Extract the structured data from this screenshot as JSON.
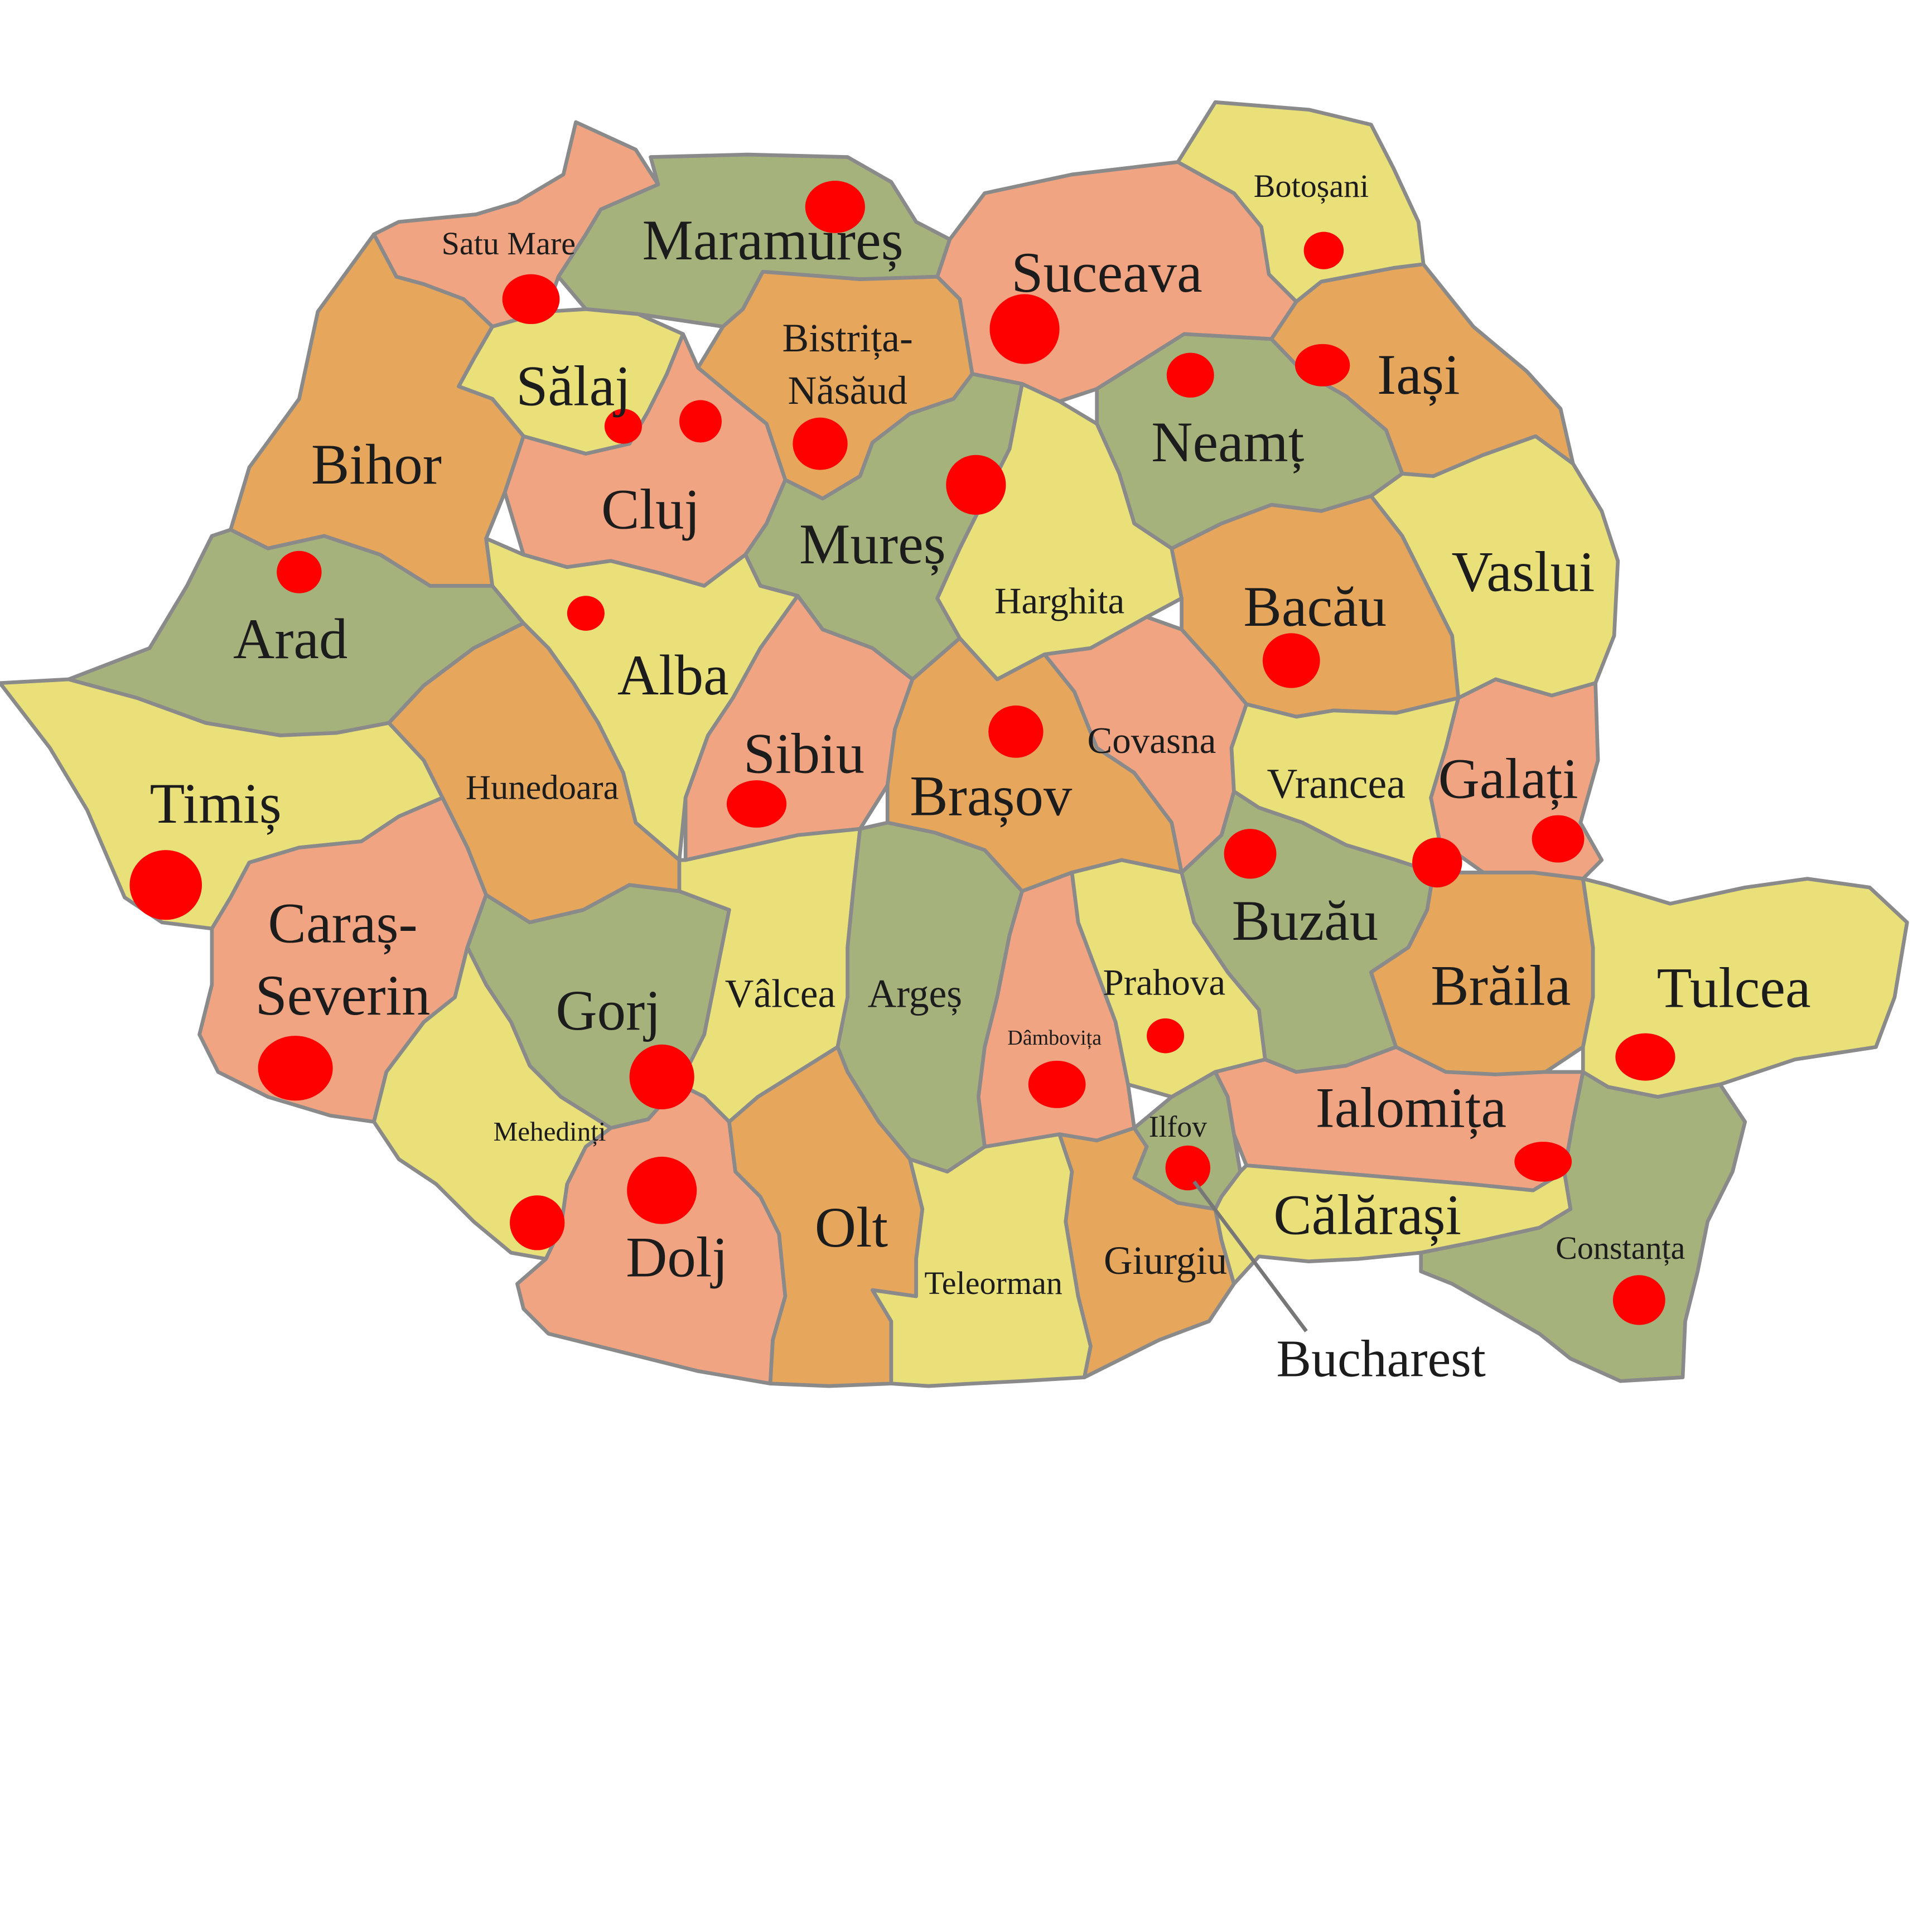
{
  "map": {
    "colors": {
      "yellow": "#e9e07a",
      "salmon": "#f1a482",
      "orange": "#e6a65c",
      "green": "#a5b27c",
      "marker": "#ff0000",
      "border": "#8a8a8a",
      "background": "#ffffff"
    },
    "counties": [
      {
        "id": "satu-mare",
        "name": "Satu Mare",
        "fill": "salmon"
      },
      {
        "id": "maramures",
        "name": "Maramureș",
        "fill": "green"
      },
      {
        "id": "suceava",
        "name": "Suceava",
        "fill": "salmon"
      },
      {
        "id": "botosani",
        "name": "Botoșani",
        "fill": "yellow"
      },
      {
        "id": "iasi",
        "name": "Iași",
        "fill": "orange"
      },
      {
        "id": "salaj",
        "name": "Sălaj",
        "fill": "yellow"
      },
      {
        "id": "bistrita-nasaud",
        "name": "Bistrița-Năsăud",
        "fill": "orange"
      },
      {
        "id": "bihor",
        "name": "Bihor",
        "fill": "orange"
      },
      {
        "id": "cluj",
        "name": "Cluj",
        "fill": "salmon"
      },
      {
        "id": "mures",
        "name": "Mureș",
        "fill": "green"
      },
      {
        "id": "neamt",
        "name": "Neamț",
        "fill": "green"
      },
      {
        "id": "vaslui",
        "name": "Vaslui",
        "fill": "yellow"
      },
      {
        "id": "harghita",
        "name": "Harghita",
        "fill": "yellow"
      },
      {
        "id": "bacau",
        "name": "Bacău",
        "fill": "orange"
      },
      {
        "id": "arad",
        "name": "Arad",
        "fill": "green"
      },
      {
        "id": "alba",
        "name": "Alba",
        "fill": "yellow"
      },
      {
        "id": "timis",
        "name": "Timiș",
        "fill": "yellow"
      },
      {
        "id": "hunedoara",
        "name": "Hunedoara",
        "fill": "orange"
      },
      {
        "id": "sibiu",
        "name": "Sibiu",
        "fill": "salmon"
      },
      {
        "id": "brasov",
        "name": "Brașov",
        "fill": "orange"
      },
      {
        "id": "covasna",
        "name": "Covasna",
        "fill": "salmon"
      },
      {
        "id": "vrancea",
        "name": "Vrancea",
        "fill": "yellow"
      },
      {
        "id": "galati",
        "name": "Galați",
        "fill": "salmon"
      },
      {
        "id": "caras-severin",
        "name": "Caraș-Severin",
        "fill": "salmon"
      },
      {
        "id": "gorj",
        "name": "Gorj",
        "fill": "green"
      },
      {
        "id": "valcea",
        "name": "Vâlcea",
        "fill": "yellow"
      },
      {
        "id": "arges",
        "name": "Argeș",
        "fill": "green"
      },
      {
        "id": "dambovita",
        "name": "Dâmbovița",
        "fill": "salmon"
      },
      {
        "id": "prahova",
        "name": "Prahova",
        "fill": "yellow"
      },
      {
        "id": "buzau",
        "name": "Buzău",
        "fill": "green"
      },
      {
        "id": "braila",
        "name": "Brăila",
        "fill": "orange"
      },
      {
        "id": "tulcea",
        "name": "Tulcea",
        "fill": "yellow"
      },
      {
        "id": "mehedinti",
        "name": "Mehedinți",
        "fill": "yellow"
      },
      {
        "id": "dolj",
        "name": "Dolj",
        "fill": "salmon"
      },
      {
        "id": "olt",
        "name": "Olt",
        "fill": "orange"
      },
      {
        "id": "teleorman",
        "name": "Teleorman",
        "fill": "yellow"
      },
      {
        "id": "giurgiu",
        "name": "Giurgiu",
        "fill": "orange"
      },
      {
        "id": "ilfov",
        "name": "Ilfov",
        "fill": "green"
      },
      {
        "id": "ialomita",
        "name": "Ialomița",
        "fill": "salmon"
      },
      {
        "id": "calarasi",
        "name": "Călărași",
        "fill": "yellow"
      },
      {
        "id": "constanta",
        "name": "Constanța",
        "fill": "green"
      }
    ],
    "callouts": {
      "bucharest": "Bucharest"
    }
  }
}
